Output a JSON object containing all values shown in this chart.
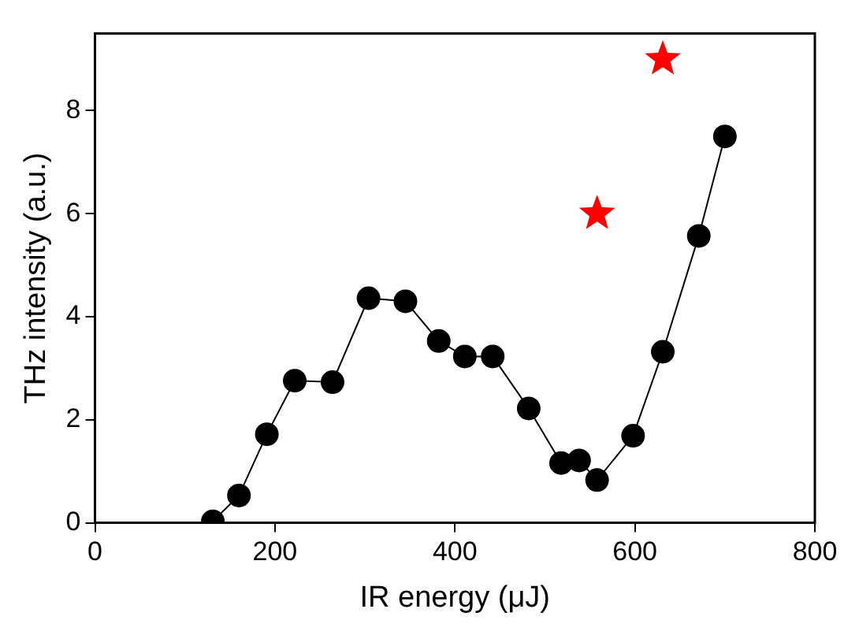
{
  "chart_data": {
    "type": "line",
    "xlabel": "IR energy (μJ)",
    "ylabel": "THz intensity (a.u.)",
    "xlim": [
      0,
      800
    ],
    "xticks": [
      0,
      200,
      400,
      600,
      800
    ],
    "ylim": [
      0,
      9.5
    ],
    "yticks": [
      0,
      2,
      4,
      6,
      8
    ],
    "grid": false,
    "legend": false,
    "series": [
      {
        "color": "#000000",
        "marker": "circle",
        "line_style": "solid",
        "x": [
          131,
          160,
          191,
          222,
          264,
          304,
          345,
          382,
          411,
          442,
          482,
          518,
          538,
          558,
          598,
          631,
          671,
          700
        ],
        "values": [
          0.03,
          0.53,
          1.72,
          2.76,
          2.73,
          4.36,
          4.3,
          3.53,
          3.23,
          3.23,
          2.22,
          1.16,
          1.21,
          0.83,
          1.69,
          3.32,
          5.57,
          7.5
        ]
      },
      {
        "type": "scatter",
        "color": "#ff0000",
        "marker": "star",
        "x": [
          558,
          631
        ],
        "values": [
          6.0,
          9.0
        ]
      }
    ]
  }
}
